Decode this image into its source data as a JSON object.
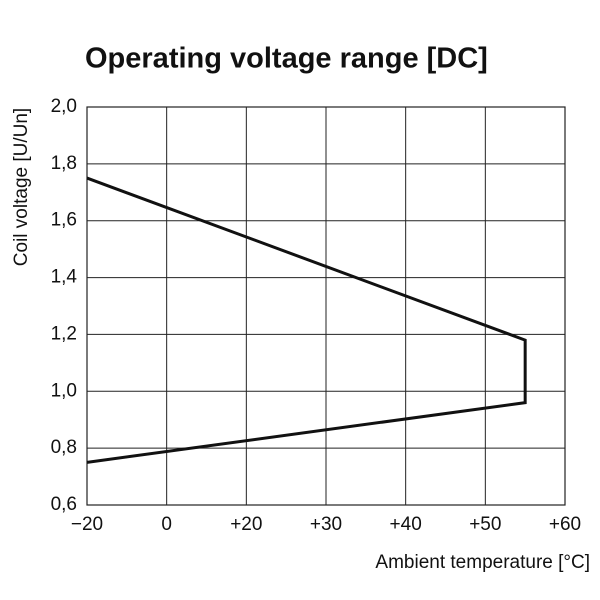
{
  "chart_data": {
    "type": "line",
    "title": "Operating voltage range [DC]",
    "x_label": "Ambient temperature [°C]",
    "y_label": "Coil voltage [U/Un]",
    "x": [
      -20,
      55,
      55,
      -20
    ],
    "series": [
      {
        "color": "#111111",
        "values": [
          1.75,
          1.18,
          0.96,
          0.75
        ]
      }
    ],
    "xlim": [
      -20,
      60
    ],
    "xticks": [
      {
        "value": -20,
        "label": "−20"
      },
      0,
      {
        "value": 20,
        "label": "+20"
      },
      {
        "value": 30,
        "label": "+30"
      },
      {
        "value": 40,
        "label": "+40"
      },
      {
        "value": 50,
        "label": "+50"
      },
      {
        "value": 60,
        "label": "+60"
      }
    ],
    "ylim": [
      0.6,
      2.0
    ],
    "yticks": [
      {
        "value": 0.6,
        "label": "0,6"
      },
      {
        "value": 0.8,
        "label": "0,8"
      },
      {
        "value": 1.0,
        "label": "1,0"
      },
      {
        "value": 1.2,
        "label": "1,2"
      },
      {
        "value": 1.4,
        "label": "1,4"
      },
      {
        "value": 1.6,
        "label": "1,6"
      },
      {
        "value": 1.8,
        "label": "1,8"
      },
      {
        "value": 2.0,
        "label": "2,0"
      }
    ],
    "grid": true
  }
}
